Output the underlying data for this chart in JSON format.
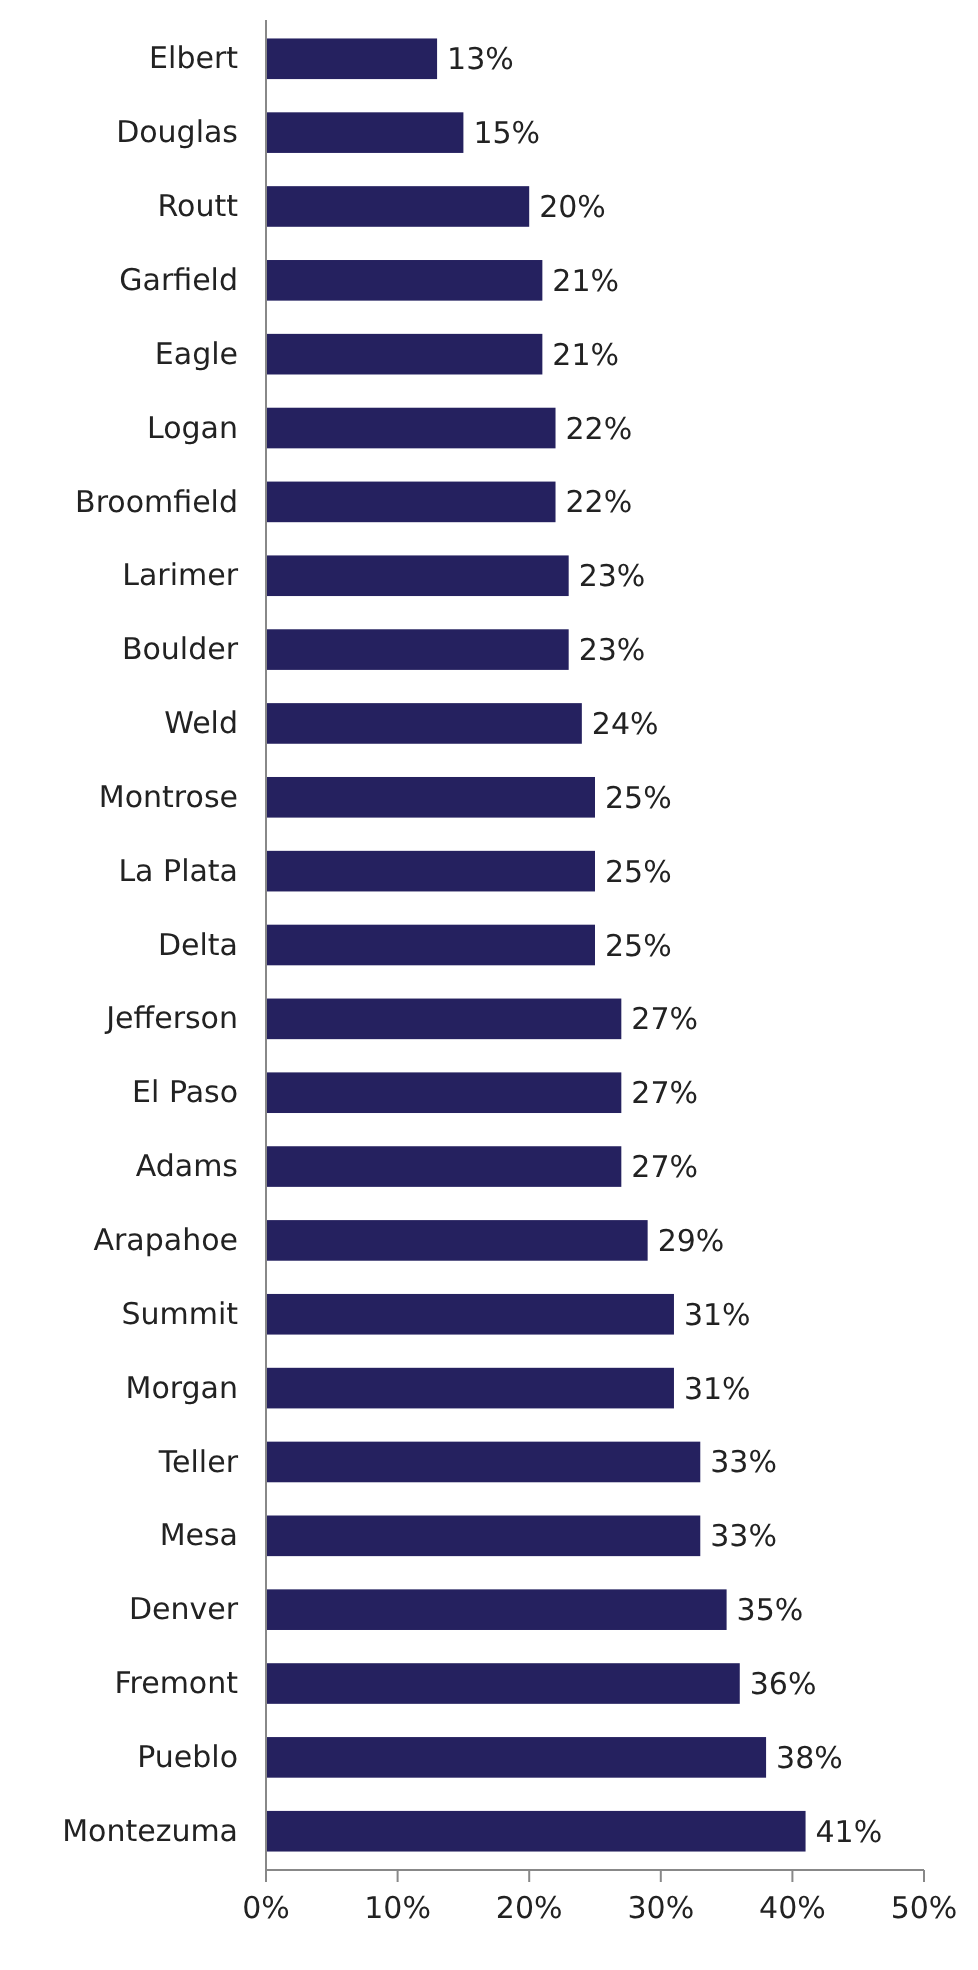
{
  "chart_data": {
    "type": "bar",
    "orientation": "horizontal",
    "categories": [
      "Elbert",
      "Douglas",
      "Routt",
      "Garfield",
      "Eagle",
      "Logan",
      "Broomfield",
      "Larimer",
      "Boulder",
      "Weld",
      "Montrose",
      "La Plata",
      "Delta",
      "Jefferson",
      "El Paso",
      "Adams",
      "Arapahoe",
      "Summit",
      "Morgan",
      "Teller",
      "Mesa",
      "Denver",
      "Fremont",
      "Pueblo",
      "Montezuma"
    ],
    "values": [
      13,
      15,
      20,
      21,
      21,
      22,
      22,
      23,
      23,
      24,
      25,
      25,
      25,
      27,
      27,
      27,
      29,
      31,
      31,
      33,
      33,
      35,
      36,
      38,
      41
    ],
    "value_labels": [
      "13%",
      "15%",
      "20%",
      "21%",
      "21%",
      "22%",
      "22%",
      "23%",
      "23%",
      "24%",
      "25%",
      "25%",
      "25%",
      "27%",
      "27%",
      "27%",
      "29%",
      "31%",
      "31%",
      "33%",
      "33%",
      "35%",
      "36%",
      "38%",
      "41%"
    ],
    "color": "#25215f",
    "xlim": [
      0,
      50
    ],
    "xticks": [
      {
        "value": 0,
        "label": "0%"
      },
      {
        "value": 10,
        "label": "10%"
      },
      {
        "value": 20,
        "label": "20%"
      },
      {
        "value": 30,
        "label": "30%"
      },
      {
        "value": 40,
        "label": "40%"
      },
      {
        "value": 50,
        "label": "50%"
      }
    ],
    "grid": false
  }
}
